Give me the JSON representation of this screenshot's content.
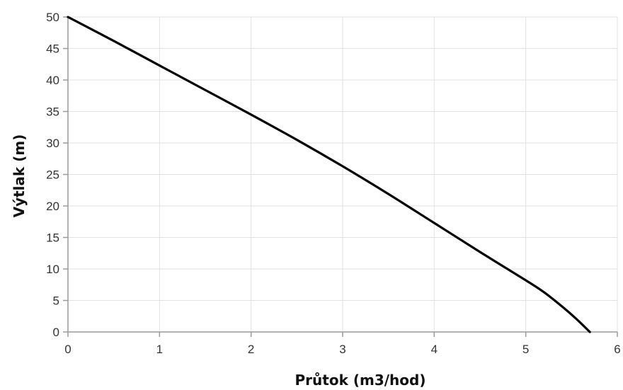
{
  "chart_data": {
    "type": "line",
    "xlabel": "Průtok (m3/hod)",
    "ylabel": "Výtlak (m)",
    "xlim": [
      0,
      6
    ],
    "ylim": [
      0,
      50
    ],
    "x_ticks": [
      0,
      1,
      2,
      3,
      4,
      5,
      6
    ],
    "y_ticks": [
      0,
      5,
      10,
      15,
      20,
      25,
      30,
      35,
      40,
      45,
      50
    ],
    "grid": true,
    "colors": {
      "line": "#000000"
    },
    "series": [
      {
        "x": [
          0,
          0.5,
          1,
          1.5,
          2,
          2.5,
          3,
          3.5,
          4,
          4.5,
          5,
          5.2,
          5.4,
          5.55,
          5.7
        ],
        "values": [
          50,
          46.2,
          42.3,
          38.4,
          34.5,
          30.5,
          26.3,
          21.9,
          17.3,
          12.7,
          8.2,
          6.3,
          4.0,
          2.1,
          0
        ]
      }
    ]
  }
}
